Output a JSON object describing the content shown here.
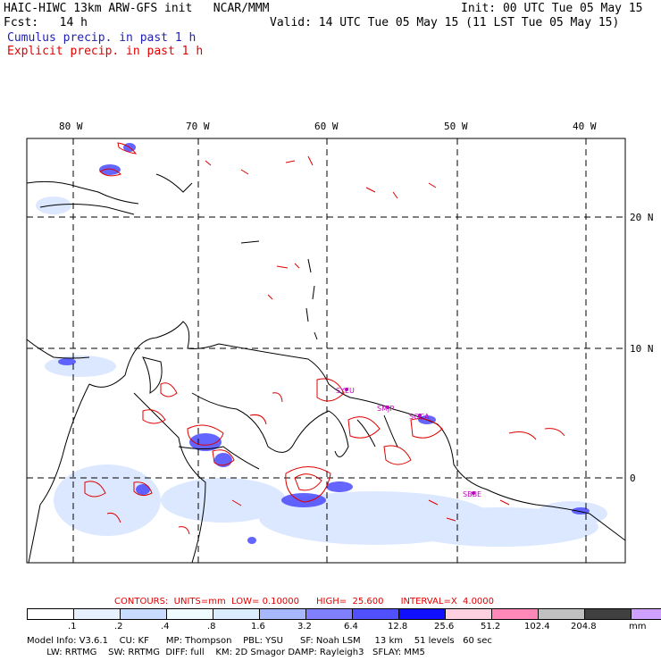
{
  "header": {
    "left_line1": "HAIC-HIWC 13km ARW-GFS init   NCAR/MMM",
    "left_line2": "Fcst:   14 h",
    "right_line1": "Init: 00 UTC Tue 05 May 15",
    "right_line2": "Valid: 14 UTC Tue 05 May 15 (11 LST Tue 05 May 15)",
    "legend_cumulus": "Cumulus precip. in past 1 h",
    "legend_explicit": "Explicit precip. in past 1 h"
  },
  "map": {
    "lon_labels": [
      "80 W",
      "70 W",
      "60 W",
      "50 W",
      "40 W"
    ],
    "lat_labels": [
      "20 N",
      "10 N",
      "0"
    ],
    "stations": [
      "SYEU",
      "SMJP",
      "SOCA",
      "SBBE"
    ],
    "colors": {
      "cumulus": "#3a3aff",
      "explicit": "#e00000",
      "light_precip": "#cfe0ff"
    }
  },
  "contours": {
    "text": "CONTOURS:  UNITS=mm  LOW= 0.10000      HIGH=  25.600      INTERVAL=X  4.0000"
  },
  "colorbar": {
    "colors": [
      "#ffffff",
      "#e6f0ff",
      "#c8dcff",
      "#eefcff",
      "#dcecff",
      "#a8b8ff",
      "#8080ff",
      "#5050ff",
      "#1010ff",
      "#ffd0e0",
      "#ff88b8",
      "#c0c0c0",
      "#404040",
      "#d0a0ff"
    ],
    "labels": [
      ".1",
      ".2",
      ".4",
      ".8",
      "1.6",
      "3.2",
      "6.4",
      "12.8",
      "25.6",
      "51.2",
      "102.4",
      "204.8"
    ],
    "unit": "mm"
  },
  "footer": {
    "line1": "Model Info: V3.6.1    CU: KF      MP: Thompson    PBL: YSU      SF: Noah LSM     13 km    51 levels   60 sec",
    "line2": "       LW: RRTMG    SW: RRTMG  DIFF: full    KM: 2D Smagor DAMP: Rayleigh3   SFLAY: MM5"
  }
}
